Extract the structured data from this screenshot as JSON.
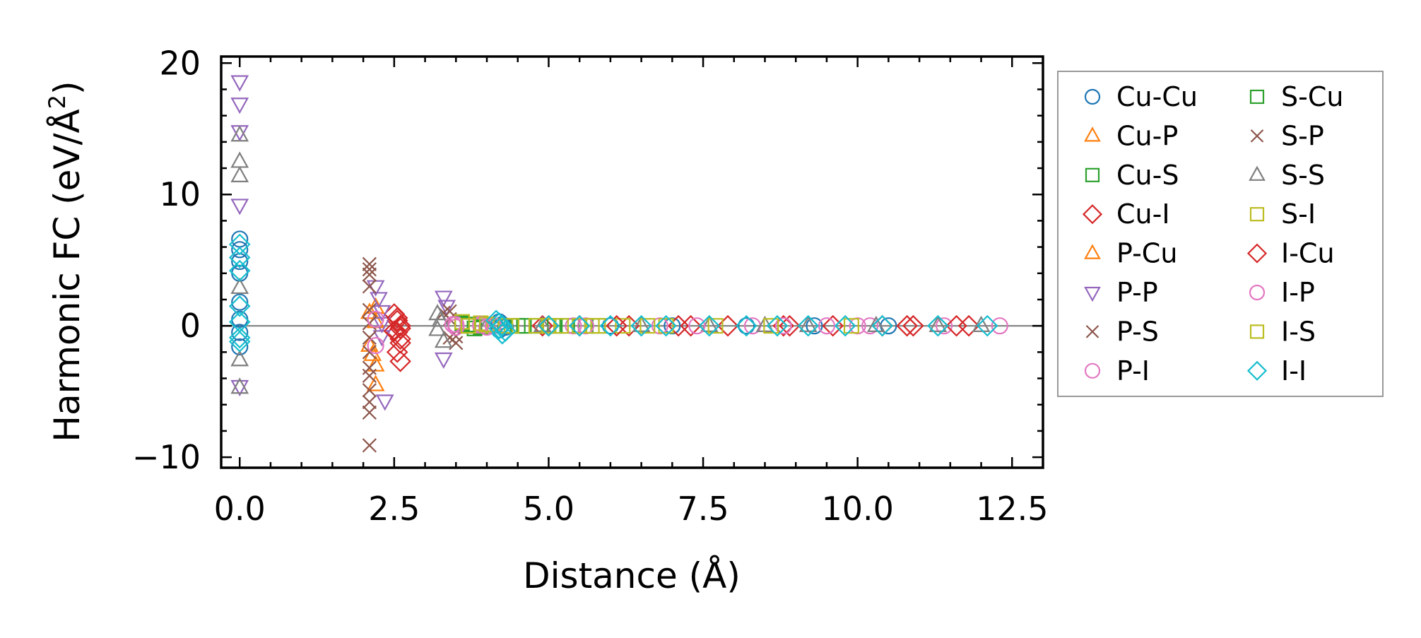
{
  "chart_data": {
    "type": "scatter",
    "xlabel": "Distance (Å)",
    "ylabel_main": "Harmonic FC (eV/Å",
    "ylabel_sup": "2",
    "ylabel_end": ")",
    "xlim": [
      -0.3,
      13.0
    ],
    "ylim": [
      -10.8,
      20.5
    ],
    "xticks": [
      0.0,
      2.5,
      5.0,
      7.5,
      10.0,
      12.5
    ],
    "xtick_labels": [
      "0.0",
      "2.5",
      "5.0",
      "7.5",
      "10.0",
      "12.5"
    ],
    "yticks": [
      -10,
      0,
      10,
      20
    ],
    "ytick_labels": [
      "−10",
      "0",
      "10",
      "20"
    ],
    "hline_y": 0,
    "legend_position": "outside-right",
    "series": [
      {
        "name": "Cu-Cu",
        "marker": "circle",
        "color": "#1f77b4",
        "points": [
          [
            0,
            6.6
          ],
          [
            0,
            5.8
          ],
          [
            0,
            4.9
          ],
          [
            0,
            4.0
          ],
          [
            0,
            1.8
          ],
          [
            0,
            0.5
          ],
          [
            0,
            -0.5
          ],
          [
            0,
            -1.6
          ],
          [
            4.2,
            0.3
          ],
          [
            4.25,
            0.1
          ],
          [
            4.3,
            -0.1
          ],
          [
            4.2,
            -0.3
          ],
          [
            6.0,
            0
          ],
          [
            7.0,
            0
          ],
          [
            8.2,
            0
          ],
          [
            9.3,
            0
          ],
          [
            10.5,
            0
          ]
        ]
      },
      {
        "name": "Cu-P",
        "marker": "triangle-up",
        "color": "#ff7f0e",
        "points": [
          [
            2.1,
            -1.5
          ],
          [
            2.15,
            -2.2
          ],
          [
            2.2,
            -3.0
          ],
          [
            2.2,
            1.4
          ]
        ]
      },
      {
        "name": "Cu-S",
        "marker": "square",
        "color": "#2ca02c",
        "points": [
          [
            3.6,
            0.2
          ],
          [
            3.7,
            0.0
          ],
          [
            3.8,
            -0.2
          ],
          [
            4.0,
            0.1
          ],
          [
            4.4,
            0
          ],
          [
            4.6,
            0
          ],
          [
            4.8,
            0
          ],
          [
            5.0,
            0
          ],
          [
            5.3,
            0
          ],
          [
            5.6,
            0
          ]
        ]
      },
      {
        "name": "Cu-I",
        "marker": "diamond",
        "color": "#d62728",
        "points": [
          [
            2.5,
            0.9
          ],
          [
            2.55,
            0.4
          ],
          [
            2.6,
            0.0
          ],
          [
            2.55,
            -0.5
          ],
          [
            2.6,
            -1.3
          ],
          [
            2.55,
            -2.0
          ],
          [
            2.6,
            -2.7
          ],
          [
            4.9,
            0
          ],
          [
            5.5,
            0
          ],
          [
            6.3,
            0
          ],
          [
            7.1,
            0
          ],
          [
            7.9,
            0
          ],
          [
            8.8,
            0
          ],
          [
            9.6,
            0
          ],
          [
            10.4,
            0
          ],
          [
            10.9,
            0
          ],
          [
            11.8,
            0
          ]
        ]
      },
      {
        "name": "P-Cu",
        "marker": "triangle-up",
        "color": "#ff7f0e",
        "points": [
          [
            2.1,
            1.0
          ],
          [
            2.2,
            0.3
          ],
          [
            2.2,
            -4.5
          ]
        ]
      },
      {
        "name": "P-P",
        "marker": "triangle-down",
        "color": "#9467bd",
        "points": [
          [
            0,
            18.6
          ],
          [
            0,
            16.9
          ],
          [
            0,
            14.8
          ],
          [
            0,
            9.2
          ],
          [
            0,
            -4.6
          ],
          [
            2.2,
            3.0
          ],
          [
            2.25,
            2.1
          ],
          [
            2.3,
            1.1
          ],
          [
            2.3,
            0.2
          ],
          [
            2.3,
            -0.8
          ],
          [
            2.35,
            -5.7
          ],
          [
            3.3,
            2.2
          ],
          [
            3.35,
            1.5
          ],
          [
            3.3,
            -2.5
          ]
        ]
      },
      {
        "name": "P-S",
        "marker": "x",
        "color": "#8c564b",
        "points": [
          [
            2.1,
            4.7
          ],
          [
            2.1,
            3.9
          ],
          [
            2.1,
            3.0
          ],
          [
            2.1,
            1.2
          ],
          [
            2.1,
            0.2
          ],
          [
            2.1,
            -0.9
          ],
          [
            2.1,
            -2.0
          ],
          [
            2.1,
            -3.8
          ],
          [
            2.1,
            -4.9
          ],
          [
            2.1,
            -5.8
          ],
          [
            2.1,
            -6.6
          ],
          [
            2.1,
            -9.1
          ],
          [
            3.3,
            1.0
          ],
          [
            3.4,
            0.5
          ],
          [
            3.5,
            -0.8
          ],
          [
            3.5,
            -1.3
          ]
        ]
      },
      {
        "name": "P-I",
        "marker": "circle",
        "color": "#e377c2",
        "points": [
          [
            2.2,
            0.5
          ],
          [
            2.2,
            -1.5
          ],
          [
            3.5,
            0.1
          ],
          [
            3.9,
            0
          ],
          [
            5.4,
            0
          ],
          [
            6.8,
            0
          ],
          [
            8.3,
            0
          ],
          [
            9.5,
            0
          ],
          [
            10.2,
            0
          ],
          [
            11.4,
            0
          ],
          [
            12.3,
            0
          ]
        ]
      },
      {
        "name": "S-Cu",
        "marker": "square",
        "color": "#2ca02c",
        "points": [
          [
            3.7,
            0.1
          ],
          [
            3.9,
            -0.1
          ],
          [
            4.5,
            0
          ],
          [
            5.1,
            0
          ],
          [
            5.8,
            0
          ]
        ]
      },
      {
        "name": "S-P",
        "marker": "x",
        "color": "#8c564b",
        "points": [
          [
            2.1,
            4.3
          ],
          [
            2.1,
            -3.2
          ],
          [
            3.4,
            1.1
          ],
          [
            3.4,
            -0.9
          ]
        ]
      },
      {
        "name": "S-S",
        "marker": "triangle-up",
        "color": "#7f7f7f",
        "points": [
          [
            0,
            14.5
          ],
          [
            0,
            12.5
          ],
          [
            0,
            11.4
          ],
          [
            0,
            2.9
          ],
          [
            0,
            -2.6
          ],
          [
            0,
            -4.7
          ],
          [
            3.2,
            0.9
          ],
          [
            3.25,
            0.4
          ],
          [
            3.2,
            -0.3
          ],
          [
            3.3,
            -1.2
          ],
          [
            4.0,
            0.0
          ],
          [
            4.9,
            0
          ],
          [
            6.5,
            0
          ],
          [
            7.6,
            0
          ],
          [
            8.5,
            0
          ],
          [
            9.2,
            0
          ],
          [
            10.3,
            0
          ],
          [
            11.3,
            0
          ],
          [
            12.0,
            0
          ]
        ]
      },
      {
        "name": "S-I",
        "marker": "square",
        "color": "#bcbd22",
        "points": [
          [
            3.6,
            0.3
          ],
          [
            3.9,
            0.2
          ],
          [
            4.1,
            0
          ],
          [
            4.4,
            0
          ],
          [
            4.8,
            0
          ],
          [
            5.2,
            0
          ],
          [
            5.5,
            0
          ],
          [
            5.8,
            0
          ],
          [
            6.2,
            0
          ],
          [
            6.6,
            0
          ]
        ]
      },
      {
        "name": "I-Cu",
        "marker": "diamond",
        "color": "#d62728",
        "points": [
          [
            2.55,
            0.6
          ],
          [
            2.6,
            -0.2
          ],
          [
            2.5,
            -0.4
          ],
          [
            2.6,
            -1.0
          ],
          [
            5.0,
            0
          ],
          [
            6.1,
            0
          ],
          [
            7.3,
            0
          ],
          [
            8.9,
            0
          ],
          [
            10.8,
            0
          ],
          [
            11.6,
            0
          ]
        ]
      },
      {
        "name": "I-P",
        "marker": "circle",
        "color": "#e377c2",
        "points": [
          [
            3.45,
            0.1
          ],
          [
            3.5,
            -0.1
          ],
          [
            3.9,
            0.1
          ],
          [
            4.0,
            -0.1
          ],
          [
            4.1,
            0
          ],
          [
            5.6,
            0
          ],
          [
            7.4,
            0
          ],
          [
            8.8,
            0
          ],
          [
            10.0,
            0
          ]
        ]
      },
      {
        "name": "I-S",
        "marker": "square",
        "color": "#bcbd22",
        "points": [
          [
            3.7,
            0
          ],
          [
            4.0,
            0.1
          ],
          [
            4.3,
            0
          ],
          [
            5.0,
            0
          ],
          [
            5.7,
            0
          ],
          [
            6.9,
            0
          ],
          [
            7.7,
            0
          ],
          [
            8.6,
            0
          ],
          [
            9.9,
            0
          ]
        ]
      },
      {
        "name": "I-I",
        "marker": "diamond",
        "color": "#17becf",
        "points": [
          [
            0,
            6.2
          ],
          [
            0,
            5.2
          ],
          [
            0,
            4.2
          ],
          [
            0,
            1.5
          ],
          [
            0,
            0.3
          ],
          [
            0,
            -0.9
          ],
          [
            0,
            -1.2
          ],
          [
            4.15,
            0.4
          ],
          [
            4.2,
            0.2
          ],
          [
            4.25,
            0.0
          ],
          [
            4.2,
            -0.2
          ],
          [
            4.3,
            -0.4
          ],
          [
            4.25,
            -0.6
          ],
          [
            5.0,
            0
          ],
          [
            5.5,
            0
          ],
          [
            6.0,
            0
          ],
          [
            6.5,
            0
          ],
          [
            6.9,
            0
          ],
          [
            7.6,
            0
          ],
          [
            8.2,
            0
          ],
          [
            8.7,
            0
          ],
          [
            9.2,
            0
          ],
          [
            9.8,
            0
          ],
          [
            10.4,
            0
          ],
          [
            11.3,
            0
          ],
          [
            12.1,
            0
          ]
        ]
      }
    ]
  }
}
